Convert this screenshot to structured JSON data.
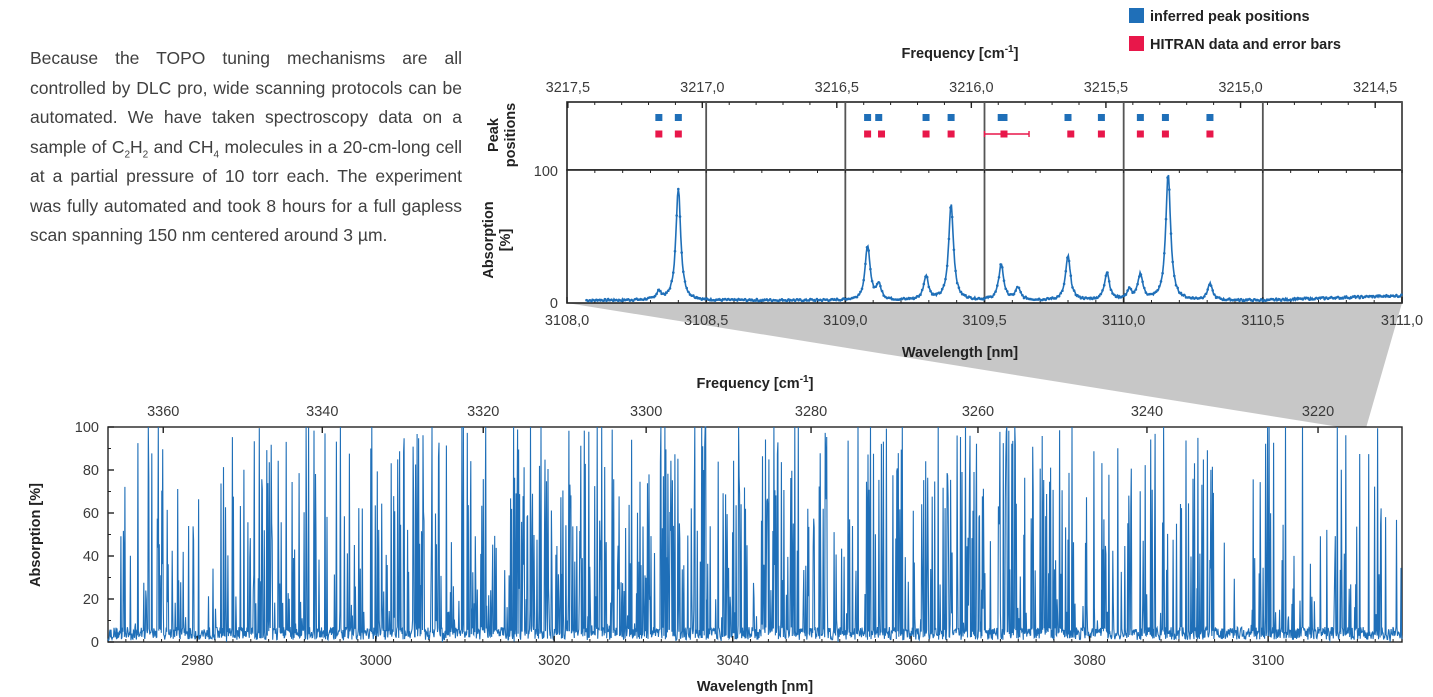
{
  "intro": {
    "part1": "Because the TOPO tuning mechanisms are all controlled by DLC pro, wide scanning protocols can be automated. We have taken spectroscopy data on a sample of ",
    "c": "C",
    "c_sub": "2",
    "h": "H",
    "h_sub": "2",
    "and": " and ",
    "ch": "CH",
    "ch_sub": "4",
    "part2": " molecules in a 20-cm-long cell at a partial pressure of 10 torr each. The experiment was fully automated and took 8 hours for a full gapless scan spanning 150 nm centered around 3 µm."
  },
  "colors": {
    "blue": "#1f6fb8",
    "red": "#e8174a",
    "shade": "#bdbdbd",
    "axis": "#222222",
    "grid": "#555555"
  },
  "chart_data": [
    {
      "type": "line",
      "panel": "zoom-absorption",
      "xlabel": "Wavelength [nm]",
      "ylabel": "Absorption [%]",
      "top_axis_label": "Frequency [cm-1]",
      "top_axis_unit_base": "Frequency [cm",
      "top_axis_unit_sup": "-1",
      "top_axis_unit_end": "]",
      "xlim": [
        3108.0,
        3111.0
      ],
      "ylim": [
        0,
        100
      ],
      "x_ticks": [
        "3108,0",
        "3108,5",
        "3109,0",
        "3109,5",
        "3110,0",
        "3110,5",
        "3111,0"
      ],
      "x_tick_values": [
        3108.0,
        3108.5,
        3109.0,
        3109.5,
        3110.0,
        3110.5,
        3111.0
      ],
      "top_ticks": [
        "3217,5",
        "3217,0",
        "3216,5",
        "3216,0",
        "3215,5",
        "3215,0",
        "3214,5"
      ],
      "y_ticks": [
        "0",
        "100"
      ],
      "grid_lines_nm": [
        3108.5,
        3109.0,
        3109.5,
        3110.0,
        3110.5,
        3111.0
      ],
      "series": [
        {
          "baseline": 1.2,
          "peaks_nm": [
            3108.33,
            3108.4,
            3109.08,
            3109.12,
            3109.29,
            3109.38,
            3109.56,
            3109.62,
            3109.8,
            3109.94,
            3110.02,
            3110.06,
            3110.16,
            3110.31
          ],
          "peaks_abs": [
            6,
            84,
            41,
            11,
            18,
            72,
            27,
            9,
            33,
            21,
            7,
            19,
            95,
            12
          ]
        }
      ]
    },
    {
      "type": "scatter",
      "panel": "peak-positions",
      "ylabel_line1": "Peak",
      "ylabel_line2": "positions",
      "legend": [
        {
          "name": "inferred peak positions",
          "color": "#1f6fb8"
        },
        {
          "name": "HITRAN data and error bars",
          "color": "#e8174a"
        }
      ],
      "series": [
        {
          "name": "inferred peak positions",
          "x_nm": [
            3108.33,
            3108.4,
            3109.08,
            3109.12,
            3109.29,
            3109.38,
            3109.56,
            3109.57,
            3109.8,
            3109.92,
            3110.06,
            3110.15,
            3110.31
          ]
        },
        {
          "name": "HITRAN data and error bars",
          "x_nm": [
            3108.33,
            3108.4,
            3109.08,
            3109.13,
            3109.29,
            3109.38,
            3109.57,
            3109.81,
            3109.92,
            3110.06,
            3110.15,
            3110.31
          ],
          "error_bar": {
            "x_nm": 3109.57,
            "from_nm": 3109.5,
            "to_nm": 3109.66
          }
        }
      ]
    },
    {
      "type": "line",
      "panel": "full-scan",
      "xlabel": "Wavelength [nm]",
      "ylabel": "Absorption [%]",
      "top_axis_label": "Frequency [cm-1]",
      "xlim": [
        2970,
        3115
      ],
      "ylim": [
        0,
        100
      ],
      "x_ticks": [
        "2980",
        "3000",
        "3020",
        "3040",
        "3060",
        "3080",
        "3100"
      ],
      "x_tick_values": [
        2980,
        3000,
        3020,
        3040,
        3060,
        3080,
        3100
      ],
      "y_ticks": [
        "0",
        "20",
        "40",
        "60",
        "80",
        "100"
      ],
      "top_ticks": [
        "3360",
        "3340",
        "3320",
        "3300",
        "3280",
        "3260",
        "3240",
        "3220"
      ],
      "top_tick_values_cm": [
        3360,
        3340,
        3320,
        3300,
        3280,
        3260,
        3240,
        3220
      ],
      "density_note": "dense forest of absorption lines across the full 2970–3115 nm scan"
    }
  ]
}
